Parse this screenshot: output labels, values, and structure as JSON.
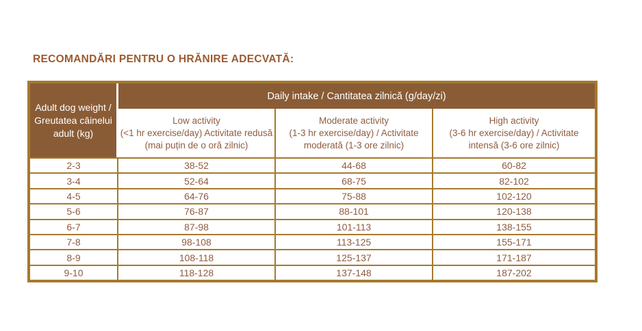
{
  "title": "RECOMANDĂRI PENTRU O HRĂNIRE ADECVATĂ:",
  "table": {
    "corner_header": {
      "line1": "Adult dog weight /",
      "line2": "Greutatea câinelui",
      "line3": "adult (kg)"
    },
    "daily_intake_header": "Daily intake / Cantitatea zilnică (g/day/zi)",
    "activity_headers": [
      {
        "line1": "Low activity",
        "line2": "(<1 hr exercise/day) Activitate redusă",
        "line3": "(mai puțin de o oră zilnic)"
      },
      {
        "line1": "Moderate activity",
        "line2": "(1-3 hr exercise/day) / Activitate",
        "line3": "moderată (1-3 ore zilnic)"
      },
      {
        "line1": "High activity",
        "line2": "(3-6 hr exercise/day) / Activitate",
        "line3": "intensă (3-6 ore zilnic)"
      }
    ],
    "rows": [
      {
        "weight": "2-3",
        "low": "38-52",
        "moderate": "44-68",
        "high": "60-82"
      },
      {
        "weight": "3-4",
        "low": "52-64",
        "moderate": "68-75",
        "high": "82-102"
      },
      {
        "weight": "4-5",
        "low": "64-76",
        "moderate": "75-88",
        "high": "102-120"
      },
      {
        "weight": "5-6",
        "low": "76-87",
        "moderate": "88-101",
        "high": "120-138"
      },
      {
        "weight": "6-7",
        "low": "87-98",
        "moderate": "101-113",
        "high": "138-155"
      },
      {
        "weight": "7-8",
        "low": "98-108",
        "moderate": "113-125",
        "high": "155-171"
      },
      {
        "weight": "8-9",
        "low": "108-118",
        "moderate": "125-137",
        "high": "171-187"
      },
      {
        "weight": "9-10",
        "low": "118-128",
        "moderate": "137-148",
        "high": "187-202"
      }
    ],
    "colors": {
      "header_background": "#8a5c36",
      "border_gold": "#a6792e",
      "data_text": "#8e5c40",
      "title_text": "#9d5a2e",
      "header_text": "#ffffff"
    }
  }
}
